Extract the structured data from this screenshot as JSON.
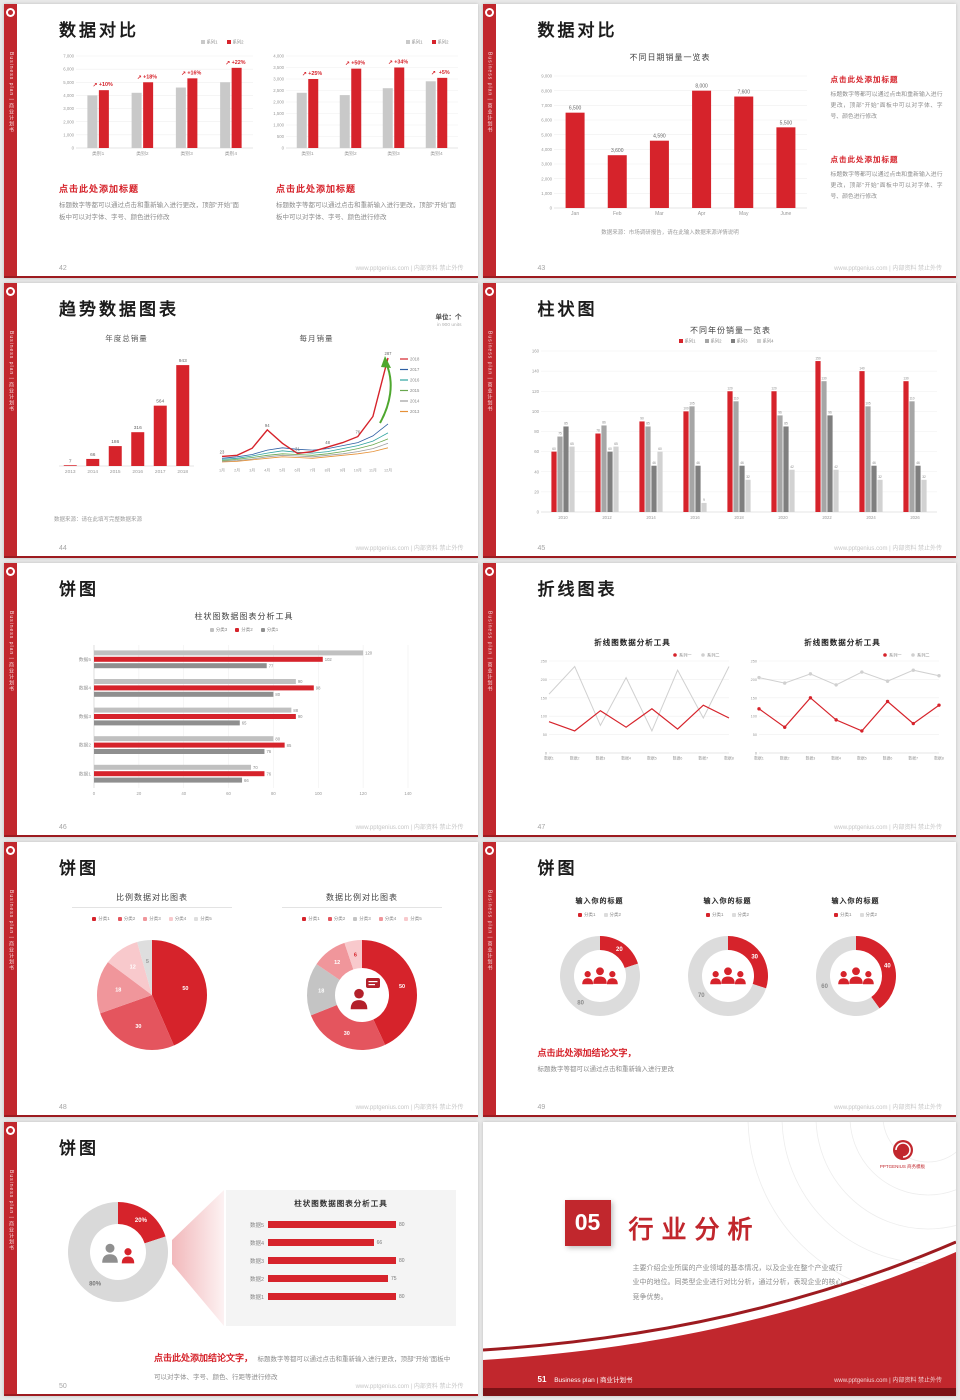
{
  "theme": {
    "red": "#d6232b",
    "strip_red": "#c1272d",
    "dark_red": "#9d1b20",
    "gray_bar": "#c9c9c9",
    "text_gray": "#8c8c8c",
    "grid": "#efefef"
  },
  "page": {
    "watermark": "www.pptgenius.com | 内部资料 禁止外传"
  },
  "brand": {
    "vertical_text": "Business plan | 商业计划书",
    "logo_caption": "PPTGENIUS 商务模板"
  },
  "common": {
    "click_heading": "点击此处添加标题",
    "click_body": "标题数字等都可以通过点击和重新输入进行更改，顶部“开始”面板中可以对字体、字号、颜色进行修改",
    "conclusion_heading": "点击此处添加结论文字，",
    "conclusion_body_short": "标题数字等都可以通过点击和重新输入进行更改",
    "conclusion_body_long": "标题数字等都可以通过点击和重新输入进行更改，顶部“开始”面板中可以对字体、字号、颜色、行距等进行修改"
  },
  "slides": {
    "s42": {
      "number": "42",
      "title": "数据对比",
      "chart_left": {
        "y_ticks": [
          "7,000",
          "6,000",
          "5,000",
          "4,000",
          "3,000",
          "2,000",
          "1,000",
          "0"
        ],
        "ymax": 7000,
        "categories": [
          "类别1",
          "类别2",
          "类别3",
          "类别4"
        ],
        "series": [
          {
            "name": "系列1",
            "color": "#c9c9c9",
            "values": [
              4000,
              4200,
              4600,
              5000
            ]
          },
          {
            "name": "系列2",
            "color": "#d6232b",
            "values": [
              4400,
              5000,
              5300,
              6100
            ]
          }
        ],
        "growth": [
          "+10%",
          "+18%",
          "+16%",
          "+22%"
        ]
      },
      "chart_right": {
        "y_ticks": [
          "4,000",
          "3,500",
          "3,000",
          "2,500",
          "2,000",
          "1,500",
          "1,000",
          "500",
          "0"
        ],
        "ymax": 4000,
        "categories": [
          "类别1",
          "类别2",
          "类别3",
          "类别4"
        ],
        "series": [
          {
            "name": "系列1",
            "color": "#c9c9c9",
            "values": [
              2400,
              2300,
              2600,
              2900
            ]
          },
          {
            "name": "系列2",
            "color": "#d6232b",
            "values": [
              3000,
              3450,
              3500,
              3050
            ]
          }
        ],
        "growth": [
          "+25%",
          "+50%",
          "+34%",
          "+5%"
        ]
      }
    },
    "s43": {
      "number": "43",
      "title": "数据对比",
      "chart": {
        "title": "不同日期销量一览表",
        "y_ticks": [
          "9,000",
          "8,000",
          "7,000",
          "6,000",
          "5,000",
          "4,000",
          "3,000",
          "2,000",
          "1,000",
          "0"
        ],
        "ymax": 9000,
        "categories": [
          "Jan",
          "Feb",
          "Mar",
          "Apr",
          "May",
          "June"
        ],
        "series": [
          {
            "name": "",
            "color": "#d6232b",
            "values": [
              6500,
              3600,
              4590,
              8000,
              7600,
              5500
            ]
          }
        ],
        "labels": [
          "6,500",
          "3,600",
          "4,590",
          "8,000",
          "7,600",
          "5,500"
        ]
      },
      "source_note": "数据来源：市场调研报告，请在此输入数据来源详情说明"
    },
    "s44": {
      "number": "44",
      "title": "趋势数据图表",
      "unit_label": "单位：个",
      "unit_sub": "in 900 units",
      "bar_chart": {
        "title": "年度总销量",
        "ymax": 1000,
        "categories": [
          "2013",
          "2014",
          "2015",
          "2016",
          "2017",
          "2018"
        ],
        "series": [
          {
            "name": "",
            "color": "#d6232b",
            "values": [
              7,
              66,
              186,
              316,
              564,
              943
            ]
          }
        ],
        "labels": [
          "7",
          "66",
          "186",
          "316",
          "564",
          "943"
        ]
      },
      "line_chart": {
        "title": "每月销量",
        "ymax": 300,
        "x_labels": [
          "1月",
          "2月",
          "3月",
          "4月",
          "5月",
          "6月",
          "7月",
          "8月",
          "9月",
          "10月",
          "11月",
          "12月"
        ],
        "series": [
          {
            "name": "2018",
            "color": "#d6232b",
            "values": [
              23,
              26,
              45,
              94,
              58,
              31,
              36,
              48,
              60,
              76,
              130,
              287
            ]
          },
          {
            "name": "2017",
            "color": "#2e5fa3",
            "values": [
              18,
              22,
              28,
              40,
              46,
              42,
              40,
              44,
              52,
              60,
              78,
              110
            ]
          },
          {
            "name": "2016",
            "color": "#2fa3a0",
            "values": [
              15,
              18,
              24,
              32,
              38,
              34,
              32,
              36,
              44,
              52,
              64,
              86
            ]
          },
          {
            "name": "2015",
            "color": "#6aa84f",
            "values": [
              12,
              15,
              20,
              26,
              30,
              28,
              26,
              30,
              36,
              44,
              54,
              70
            ]
          },
          {
            "name": "2014",
            "color": "#9e9e9e",
            "values": [
              10,
              12,
              16,
              22,
              26,
              24,
              22,
              26,
              30,
              36,
              44,
              58
            ]
          },
          {
            "name": "2013",
            "color": "#e69138",
            "values": [
              8,
              10,
              14,
              18,
              22,
              20,
              18,
              22,
              26,
              30,
              36,
              46
            ]
          }
        ],
        "point_labels": [
          {
            "i": 0,
            "v": "23"
          },
          {
            "i": 3,
            "v": "94"
          },
          {
            "i": 5,
            "v": "31"
          },
          {
            "i": 7,
            "v": "48"
          },
          {
            "i": 9,
            "v": "76"
          },
          {
            "i": 11,
            "v": "287"
          }
        ]
      },
      "source_note": "数据来源：请在此填写完整数据来源"
    },
    "s45": {
      "number": "45",
      "title": "柱状图",
      "chart": {
        "title": "不同年份销量一览表",
        "y_ticks": [
          "160",
          "140",
          "120",
          "100",
          "80",
          "60",
          "40",
          "20",
          "0"
        ],
        "ymax": 160,
        "categories": [
          "2010",
          "2012",
          "2014",
          "2016",
          "2018",
          "2020",
          "2022",
          "2024",
          "2026"
        ],
        "series": [
          {
            "name": "系列1",
            "color": "#d6232b",
            "values": [
              60,
              78,
              90,
              100,
              120,
              120,
              150,
              140,
              130
            ]
          },
          {
            "name": "系列2",
            "color": "#a6a6a6",
            "values": [
              75,
              86,
              85,
              105,
              110,
              96,
              130,
              105,
              110
            ]
          },
          {
            "name": "系列3",
            "color": "#7f7f7f",
            "values": [
              85,
              60,
              46,
              46,
              46,
              85,
              96,
              46,
              46
            ]
          },
          {
            "name": "系列4",
            "color": "#d2d2d2",
            "values": [
              65,
              65,
              60,
              9,
              32,
              42,
              42,
              32,
              32
            ]
          }
        ]
      }
    },
    "s46": {
      "number": "46",
      "title": "饼图",
      "chart": {
        "title": "柱状图数据图表分析工具",
        "legend": [
          {
            "label": "分类3",
            "color": "#c0c0c0"
          },
          {
            "label": "分类2",
            "color": "#d6232b"
          },
          {
            "label": "分类1",
            "color": "#8f8f8f"
          }
        ],
        "x_ticks": [
          "0",
          "20",
          "40",
          "60",
          "80",
          "100",
          "120",
          "140"
        ],
        "xmax": 140,
        "categories": [
          "数据5",
          "数据4",
          "数据3",
          "数据2",
          "数据1"
        ],
        "series_colors": [
          "#c0c0c0",
          "#d6232b",
          "#8f8f8f"
        ],
        "groups": [
          [
            120,
            102,
            77
          ],
          [
            90,
            98,
            80
          ],
          [
            88,
            90,
            65
          ],
          [
            80,
            85,
            76
          ],
          [
            70,
            76,
            66
          ]
        ]
      }
    },
    "s47": {
      "number": "47",
      "title": "折线图表",
      "chart_left": {
        "title": "折线图数据分析工具",
        "y_ticks": [
          "250",
          "200",
          "150",
          "100",
          "50",
          "0"
        ],
        "ymax": 250,
        "x_labels": [
          "数据1",
          "数据2",
          "数据3",
          "数据4",
          "数据5",
          "数据6",
          "数据7",
          "数据8"
        ],
        "series": [
          {
            "name": "系列一",
            "color": "#d6232b",
            "values": [
              85,
              60,
              115,
              70,
              120,
              65,
              130,
              95
            ],
            "markers": false
          },
          {
            "name": "系列二",
            "color": "#d0d0d0",
            "values": [
              160,
              235,
              75,
              205,
              60,
              225,
              95,
              235
            ],
            "markers": false
          }
        ]
      },
      "chart_right": {
        "title": "折线图数据分析工具",
        "y_ticks": [
          "250",
          "200",
          "150",
          "100",
          "50",
          "0"
        ],
        "ymax": 250,
        "x_labels": [
          "数据1",
          "数据2",
          "数据3",
          "数据4",
          "数据5",
          "数据6",
          "数据7",
          "数据8"
        ],
        "series": [
          {
            "name": "系列一",
            "color": "#d6232b",
            "values": [
              120,
              70,
              150,
              90,
              60,
              140,
              80,
              130
            ],
            "markers": true
          },
          {
            "name": "系列二",
            "color": "#d0d0d0",
            "values": [
              205,
              190,
              215,
              185,
              220,
              195,
              225,
              210
            ],
            "markers": true
          }
        ]
      }
    },
    "s48": {
      "number": "48",
      "title": "饼图",
      "pie_left": {
        "title": "比例数据对比图表",
        "legend": [
          {
            "label": "分类1",
            "color": "#d6232b"
          },
          {
            "label": "分类2",
            "color": "#e4555e"
          },
          {
            "label": "分类3",
            "color": "#f0969b"
          },
          {
            "label": "分类4",
            "color": "#f8c9cc"
          },
          {
            "label": "分类5",
            "color": "#dedede"
          }
        ],
        "values": [
          50,
          30,
          18,
          12,
          5
        ],
        "labels": [
          "50",
          "30",
          "18",
          "12",
          "5"
        ],
        "colors": [
          "#d6232b",
          "#e4555e",
          "#f0969b",
          "#f8c9cc",
          "#dedede"
        ],
        "label_colors": [
          "#ffffff",
          "#ffffff",
          "#ffffff",
          "#ffffff",
          "#999999"
        ]
      },
      "pie_right": {
        "title": "数据比例对比图表",
        "legend": [
          {
            "label": "分类1",
            "color": "#d6232b"
          },
          {
            "label": "分类2",
            "color": "#e4555e"
          },
          {
            "label": "分类3",
            "color": "#c4c4c4"
          },
          {
            "label": "分类4",
            "color": "#f0969b"
          },
          {
            "label": "分类5",
            "color": "#f8c9cc"
          }
        ],
        "values": [
          50,
          30,
          18,
          12,
          6
        ],
        "labels": [
          "50",
          "30",
          "18",
          "12",
          "6"
        ],
        "colors": [
          "#d6232b",
          "#e4555e",
          "#c4c4c4",
          "#f0969b",
          "#f8c9cc"
        ],
        "label_colors": [
          "#ffffff",
          "#ffffff",
          "#ffffff",
          "#ffffff",
          "#d6232b"
        ]
      }
    },
    "s49": {
      "number": "49",
      "title": "饼图",
      "legend": [
        {
          "label": "分类1",
          "color": "#d6232b"
        },
        {
          "label": "分类2",
          "color": "#dcdcdc"
        }
      ],
      "donuts": [
        {
          "title": "输入你的标题",
          "values": [
            20,
            80
          ],
          "labels": [
            "20",
            "80"
          ],
          "colors": [
            "#d6232b",
            "#dcdcdc"
          ],
          "label_colors": [
            "#ffffff",
            "#8c8c8c"
          ]
        },
        {
          "title": "输入你的标题",
          "values": [
            30,
            70
          ],
          "labels": [
            "30",
            "70"
          ],
          "colors": [
            "#d6232b",
            "#dcdcdc"
          ],
          "label_colors": [
            "#ffffff",
            "#8c8c8c"
          ]
        },
        {
          "title": "输入你的标题",
          "values": [
            40,
            60
          ],
          "labels": [
            "40",
            "60"
          ],
          "colors": [
            "#d6232b",
            "#dcdcdc"
          ],
          "label_colors": [
            "#ffffff",
            "#8c8c8c"
          ]
        }
      ]
    },
    "s50": {
      "number": "50",
      "title": "饼图",
      "donut": {
        "values": [
          20,
          80
        ],
        "labels": [
          "20%",
          "80%"
        ],
        "colors": [
          "#d6232b",
          "#d9d9d9"
        ],
        "label_colors": [
          "#ffffff",
          "#777777"
        ]
      },
      "panel": {
        "title": "柱状图数据图表分析工具",
        "categories": [
          "数据5",
          "数据4",
          "数据3",
          "数据2",
          "数据1"
        ],
        "values": [
          80,
          66,
          80,
          75,
          80
        ],
        "max": 100
      }
    },
    "s51": {
      "number": "51",
      "chapter_number": "05",
      "chapter_title": "行业分析",
      "body": "主要介绍企业所属的产业领域的基本情况，以及企业在整个产业或行业中的地位。同类型企业进行对比分析，通过分析，表现企业的核心竞争优势。"
    }
  }
}
